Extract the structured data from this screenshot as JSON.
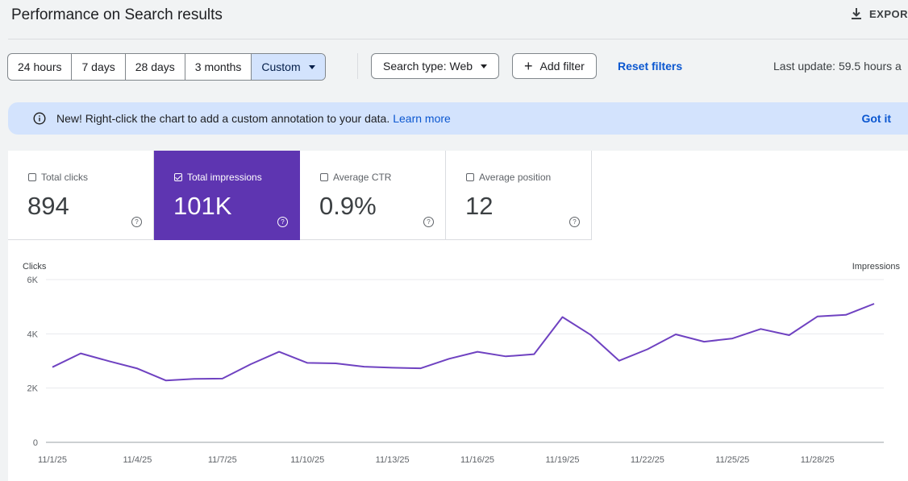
{
  "header": {
    "title": "Performance on Search results",
    "export_label": "EXPOR"
  },
  "date_range": {
    "options": [
      {
        "label": "24 hours",
        "active": false
      },
      {
        "label": "7 days",
        "active": false
      },
      {
        "label": "28 days",
        "active": false
      },
      {
        "label": "3 months",
        "active": false
      },
      {
        "label": "Custom",
        "active": true
      }
    ]
  },
  "filters": {
    "search_type": "Search type: Web",
    "add_filter": "Add filter",
    "reset": "Reset filters",
    "last_update": "Last update: 59.5 hours a"
  },
  "banner": {
    "message": "New! Right-click the chart to add a custom annotation to your data.",
    "learn_more": "Learn more",
    "dismiss": "Got it"
  },
  "metrics": [
    {
      "label": "Total clicks",
      "value": "894",
      "checked": false
    },
    {
      "label": "Total impressions",
      "value": "101K",
      "checked": true
    },
    {
      "label": "Average CTR",
      "value": "0.9%",
      "checked": false
    },
    {
      "label": "Average position",
      "value": "12",
      "checked": false
    }
  ],
  "colors": {
    "accent": "#5e35b1",
    "line": "#6f42c1",
    "link": "#0b57d0",
    "banner": "#d3e3fd"
  },
  "chart_data": {
    "type": "line",
    "left_axis_label": "Clicks",
    "right_axis_label": "Impressions",
    "yticks": [
      "6K",
      "4K",
      "2K",
      "0"
    ],
    "ytick_values": [
      6000,
      4000,
      2000,
      0
    ],
    "ylim": [
      0,
      6000
    ],
    "xtick_labels": [
      "11/1/25",
      "11/4/25",
      "11/7/25",
      "11/10/25",
      "11/13/25",
      "11/16/25",
      "11/19/25",
      "11/22/25",
      "11/25/25",
      "11/28/25"
    ],
    "grid": true,
    "series": [
      {
        "x": [
          "11/1/25",
          "11/2/25",
          "11/3/25",
          "11/4/25",
          "11/5/25",
          "11/6/25",
          "11/7/25",
          "11/8/25",
          "11/9/25",
          "11/10/25",
          "11/11/25",
          "11/12/25",
          "11/13/25",
          "11/14/25",
          "11/15/25",
          "11/16/25",
          "11/17/25",
          "11/18/25",
          "11/19/25",
          "11/20/25",
          "11/21/25",
          "11/22/25",
          "11/23/25",
          "11/24/25",
          "11/25/25",
          "11/26/25",
          "11/27/25",
          "11/28/25",
          "11/29/25",
          "11/30/25"
        ],
        "values": [
          2770,
          3280,
          2990,
          2720,
          2280,
          2340,
          2350,
          2880,
          3340,
          2930,
          2910,
          2790,
          2750,
          2730,
          3080,
          3340,
          3170,
          3250,
          4620,
          3960,
          3010,
          3430,
          3980,
          3710,
          3830,
          4180,
          3950,
          4640,
          4700,
          5110
        ]
      }
    ]
  }
}
